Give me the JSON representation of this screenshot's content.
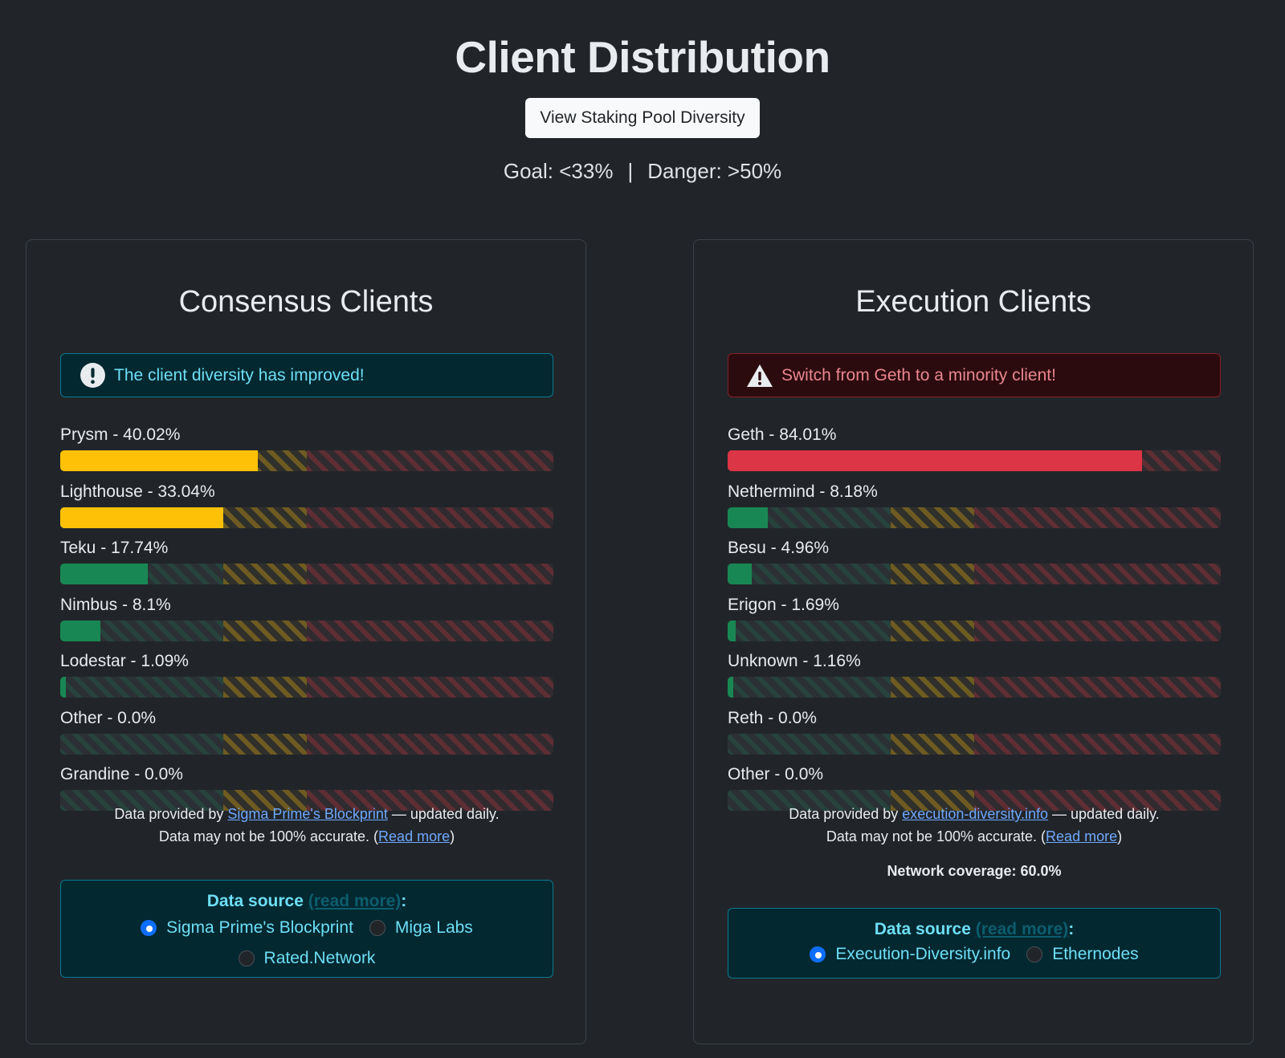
{
  "header": {
    "title": "Client Distribution",
    "pool_button": "View Staking Pool Diversity",
    "goal": "Goal: <33%",
    "separator": "|",
    "danger": "Danger: >50%"
  },
  "colors": {
    "green": "#198754",
    "yellow": "#ffc107",
    "red": "#dc3545"
  },
  "consensus": {
    "title": "Consensus Clients",
    "alert": {
      "icon": "exclamation-circle-icon",
      "text": "The client diversity has improved!"
    },
    "clients": [
      {
        "label": "Prysm - 40.02%",
        "percent": 40.02,
        "status": "yellow"
      },
      {
        "label": "Lighthouse - 33.04%",
        "percent": 33.04,
        "status": "yellow"
      },
      {
        "label": "Teku - 17.74%",
        "percent": 17.74,
        "status": "green"
      },
      {
        "label": "Nimbus - 8.1%",
        "percent": 8.1,
        "status": "green"
      },
      {
        "label": "Lodestar - 1.09%",
        "percent": 1.09,
        "status": "green"
      },
      {
        "label": "Other - 0.0%",
        "percent": 0.0,
        "status": "green"
      },
      {
        "label": "Grandine - 0.0%",
        "percent": 0.0,
        "status": "green"
      }
    ],
    "footer": {
      "prefix": "Data provided by ",
      "link": "Sigma Prime's Blockprint",
      "suffix": " — updated daily.",
      "accuracy": "Data may not be 100% accurate. (",
      "read_more": "Read more",
      "close": ")"
    },
    "source": {
      "label": "Data source",
      "read_more": "(read more)",
      "colon": ":",
      "options": [
        {
          "label": "Sigma Prime's Blockprint",
          "selected": true
        },
        {
          "label": "Miga Labs",
          "selected": false
        },
        {
          "label": "Rated.Network",
          "selected": false
        }
      ]
    }
  },
  "execution": {
    "title": "Execution Clients",
    "alert": {
      "icon": "warning-triangle-icon",
      "text": "Switch from Geth to a minority client!"
    },
    "clients": [
      {
        "label": "Geth - 84.01%",
        "percent": 84.01,
        "status": "red"
      },
      {
        "label": "Nethermind - 8.18%",
        "percent": 8.18,
        "status": "green"
      },
      {
        "label": "Besu - 4.96%",
        "percent": 4.96,
        "status": "green"
      },
      {
        "label": "Erigon - 1.69%",
        "percent": 1.69,
        "status": "green"
      },
      {
        "label": "Unknown - 1.16%",
        "percent": 1.16,
        "status": "green"
      },
      {
        "label": "Reth - 0.0%",
        "percent": 0.0,
        "status": "green"
      },
      {
        "label": "Other - 0.0%",
        "percent": 0.0,
        "status": "green"
      }
    ],
    "footer": {
      "prefix": "Data provided by ",
      "link": "execution-diversity.info",
      "suffix": " — updated daily.",
      "accuracy": "Data may not be 100% accurate. (",
      "read_more": "Read more",
      "close": ")"
    },
    "coverage": "Network coverage: 60.0%",
    "source": {
      "label": "Data source",
      "read_more": "(read more)",
      "colon": ":",
      "options": [
        {
          "label": "Execution-Diversity.info",
          "selected": true
        },
        {
          "label": "Ethernodes",
          "selected": false
        }
      ]
    }
  }
}
